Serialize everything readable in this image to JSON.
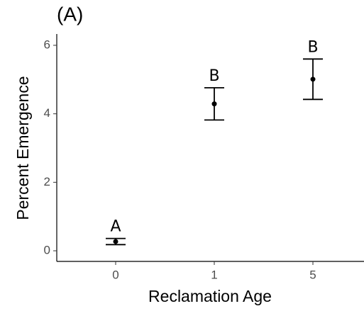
{
  "chart_data": {
    "type": "errorbar",
    "panel_label": "(A)",
    "x_label": "Reclamation Age",
    "y_label": "Percent Emergence",
    "categories": [
      "0",
      "1",
      "5"
    ],
    "values": [
      0.27,
      4.29,
      5.01
    ],
    "errors": [
      0.09,
      0.47,
      0.59
    ],
    "letters": [
      "A",
      "B",
      "B"
    ],
    "color": "#000000",
    "ylim": [
      -0.31,
      6.33
    ],
    "yticks": [
      0,
      2,
      4,
      6
    ]
  }
}
